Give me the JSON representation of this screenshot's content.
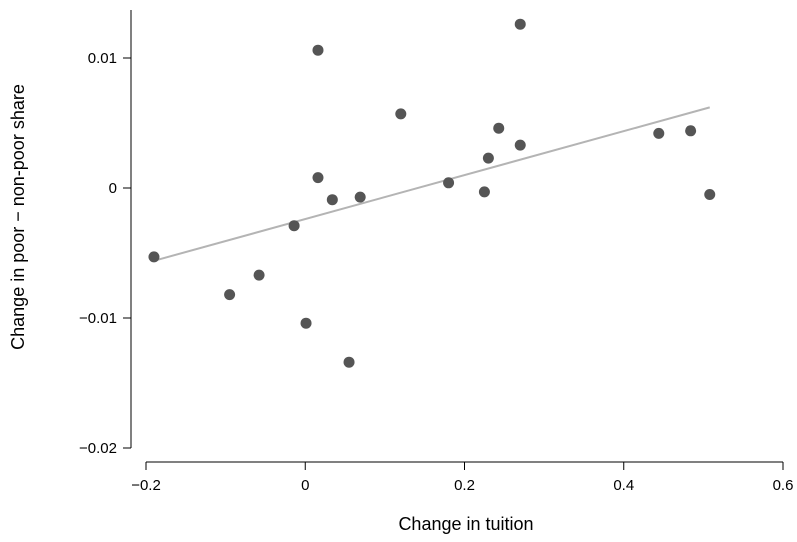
{
  "chart_data": {
    "type": "scatter",
    "title": "",
    "xlabel": "Change in tuition",
    "ylabel": "Change in poor − non-poor share",
    "xlim": [
      -0.2,
      0.6
    ],
    "ylim": [
      -0.02,
      0.01
    ],
    "xticks": [
      -0.2,
      0,
      0.2,
      0.4,
      0.6
    ],
    "xtick_labels": [
      "−0.2",
      "0",
      "0.2",
      "0.4",
      "0.6"
    ],
    "yticks": [
      -0.02,
      -0.01,
      0,
      0.01
    ],
    "ytick_labels": [
      "−0.02",
      "−0.01",
      "0",
      "0.01"
    ],
    "grid": false,
    "legend": "none",
    "marker_color": "#555555",
    "fit_line_color": "#b4b4b4",
    "points": [
      {
        "x": -0.19,
        "y": -0.0053
      },
      {
        "x": -0.095,
        "y": -0.0082
      },
      {
        "x": -0.058,
        "y": -0.0067
      },
      {
        "x": -0.014,
        "y": -0.0029
      },
      {
        "x": 0.001,
        "y": -0.0104
      },
      {
        "x": 0.016,
        "y": 0.0106
      },
      {
        "x": 0.016,
        "y": 0.0008
      },
      {
        "x": 0.034,
        "y": -0.0009
      },
      {
        "x": 0.055,
        "y": -0.0134
      },
      {
        "x": 0.069,
        "y": -0.0007
      },
      {
        "x": 0.12,
        "y": 0.0057
      },
      {
        "x": 0.18,
        "y": 0.0004
      },
      {
        "x": 0.225,
        "y": -0.0003
      },
      {
        "x": 0.23,
        "y": 0.0023
      },
      {
        "x": 0.243,
        "y": 0.0046
      },
      {
        "x": 0.27,
        "y": 0.0126
      },
      {
        "x": 0.27,
        "y": 0.0033
      },
      {
        "x": 0.444,
        "y": 0.0042
      },
      {
        "x": 0.484,
        "y": 0.0044
      },
      {
        "x": 0.508,
        "y": -0.0005
      }
    ],
    "fit_line": {
      "x": [
        -0.19,
        0.508
      ],
      "y": [
        -0.0056,
        0.0062
      ]
    }
  }
}
